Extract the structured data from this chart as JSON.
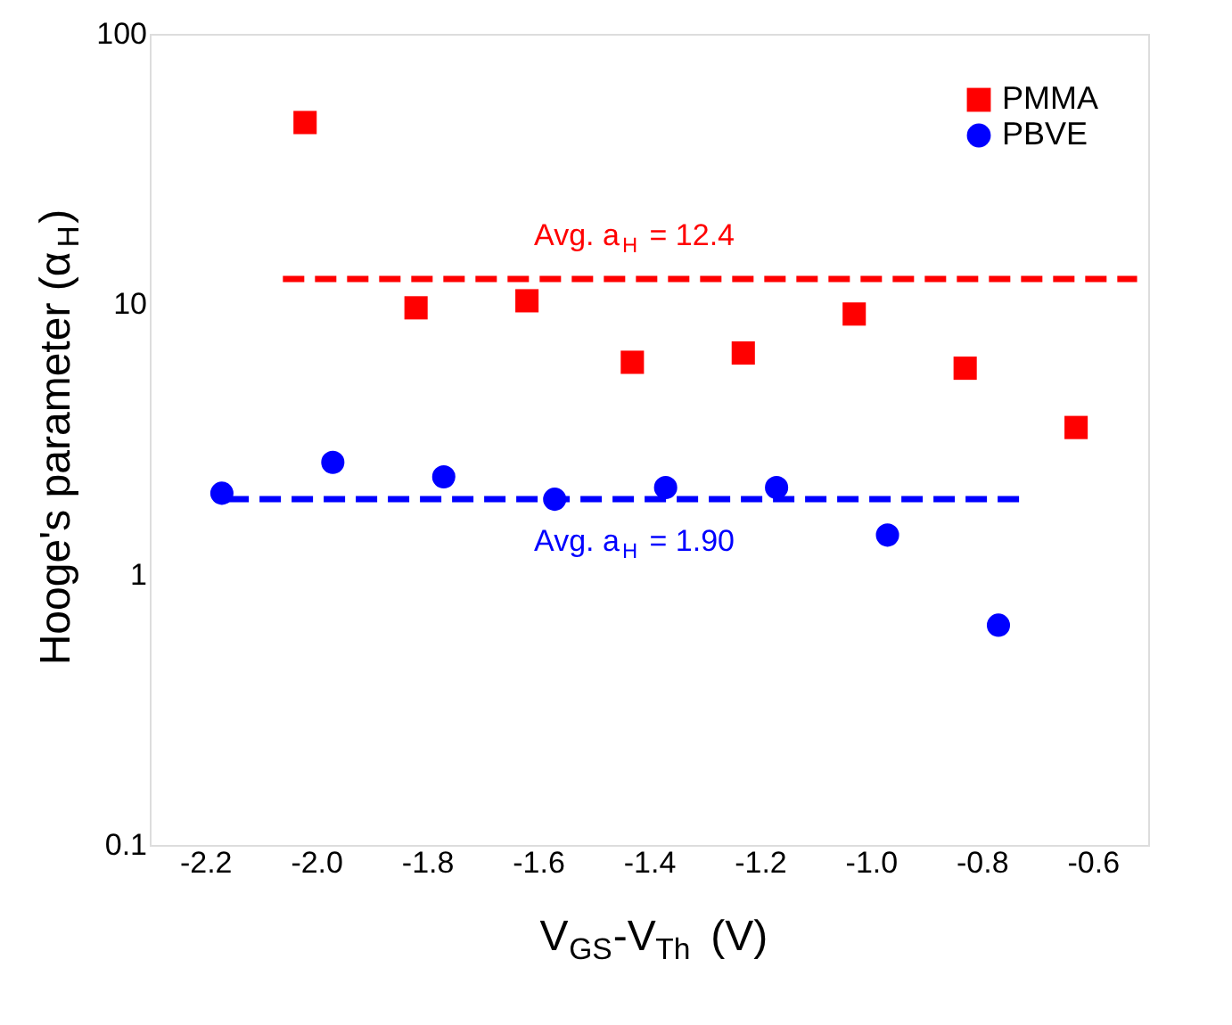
{
  "chart_data": {
    "type": "scatter",
    "xlabel": "V$_{GS}$-V$_{Th}$ (V)",
    "ylabel": "Hooge's parameter (α$_{H}$)",
    "log": "y",
    "xlim": [
      -2.3,
      -0.5
    ],
    "xticks": [
      {
        "value": -2.2,
        "label": "-2.2"
      },
      {
        "value": -2.0,
        "label": "-2.0"
      },
      {
        "value": -1.8,
        "label": "-1.8"
      },
      {
        "value": -1.6,
        "label": "-1.6"
      },
      {
        "value": -1.4,
        "label": "-1.4"
      },
      {
        "value": -1.2,
        "label": "-1.2"
      },
      {
        "value": -1.0,
        "label": "-1.0"
      },
      {
        "value": -0.8,
        "label": "-0.8"
      },
      {
        "value": -0.6,
        "label": "-0.6"
      }
    ],
    "ylim": [
      0.1,
      100
    ],
    "yticks": [
      0.1,
      1,
      10,
      100
    ],
    "legend": "top right",
    "grid": false,
    "series": [
      {
        "name": "PMMA",
        "color": "#ff0000",
        "marker": "square",
        "x": [
          -2.02,
          -1.82,
          -1.62,
          -1.43,
          -1.23,
          -1.03,
          -0.83,
          -0.63
        ],
        "values": [
          47,
          9.7,
          10.3,
          6.1,
          6.6,
          9.2,
          5.8,
          3.5
        ]
      },
      {
        "name": "PBVE",
        "color": "#0000ff",
        "marker": "circle",
        "x": [
          -2.17,
          -1.97,
          -1.77,
          -1.57,
          -1.37,
          -1.17,
          -0.97,
          -0.77
        ],
        "values": [
          2.0,
          2.6,
          2.3,
          1.9,
          2.1,
          2.1,
          1.4,
          0.65
        ]
      },
      {
        "type": "line",
        "color": "#ff0000",
        "line_style": "dashed",
        "x": [
          -2.06,
          -0.52
        ],
        "values": [
          12.4,
          12.4
        ]
      },
      {
        "type": "line",
        "color": "#0000ff",
        "line_style": "dashed",
        "x": [
          -2.16,
          -0.73
        ],
        "values": [
          1.9,
          1.9
        ]
      }
    ],
    "annotations": [
      {
        "text": "Avg. a$_{H}$ = 12.4",
        "x": -1.43,
        "y": 12.4
      },
      {
        "text": "Avg. a$_{H}$ = 1.90",
        "x": -1.43,
        "y": 1.9
      }
    ]
  }
}
